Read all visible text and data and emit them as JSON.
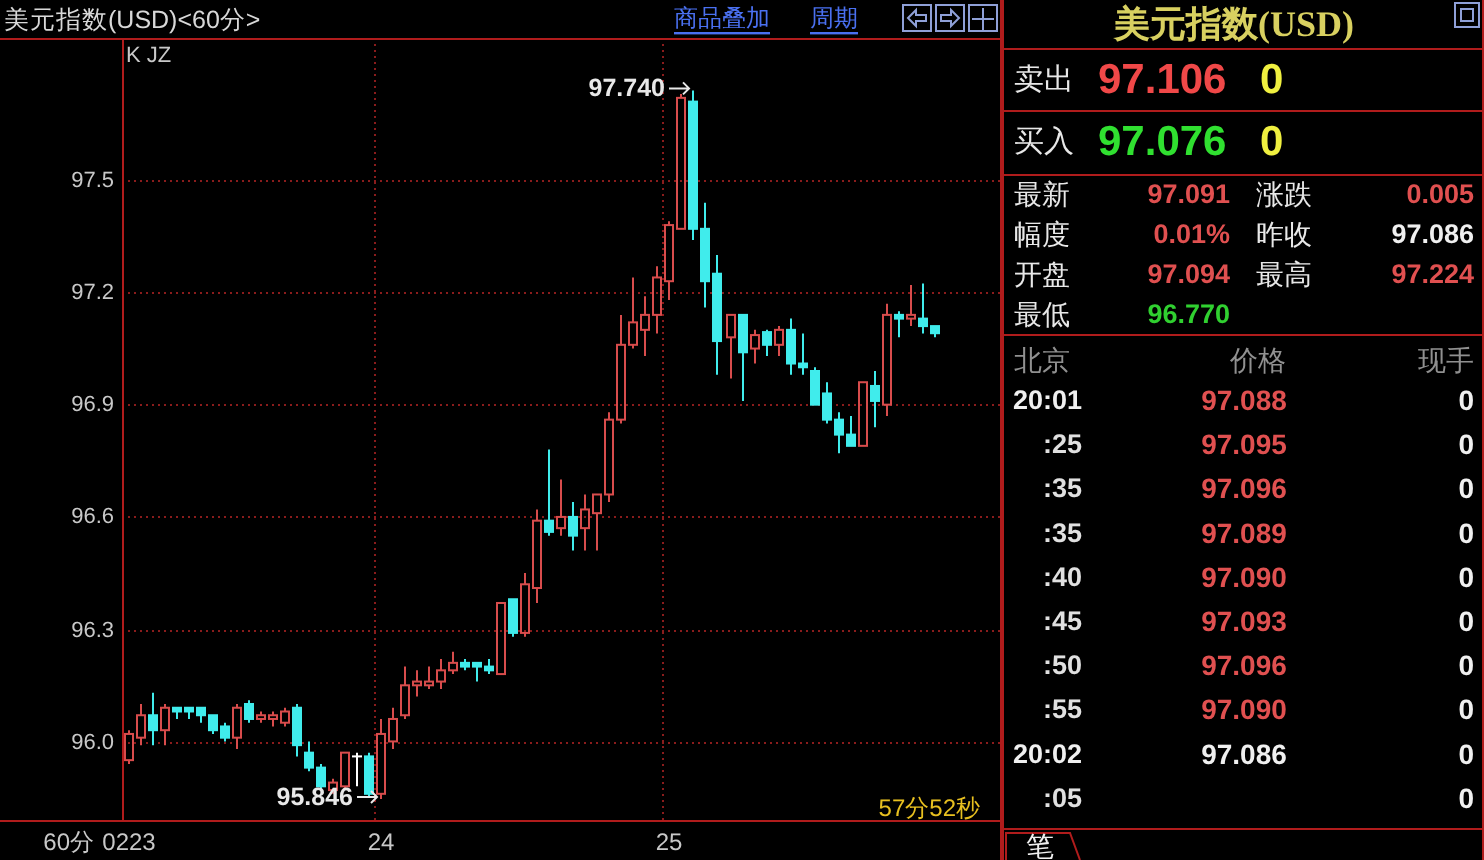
{
  "chart_data": [
    {
      "type": "candlestick",
      "title": "美元指数(USD)<60分>",
      "categories": [
        "0223",
        null,
        null,
        null,
        null,
        null,
        null,
        null,
        null,
        null,
        null,
        null,
        null,
        null,
        null,
        null,
        null,
        null,
        null,
        null,
        null,
        "24",
        null,
        null,
        null,
        null,
        null,
        null,
        null,
        null,
        null,
        null,
        null,
        null,
        null,
        null,
        null,
        null,
        null,
        null,
        null,
        null,
        null,
        null,
        null,
        "25",
        null,
        null,
        null,
        null,
        null,
        null,
        null,
        null,
        null,
        null,
        null,
        null,
        null,
        null,
        null,
        null,
        null,
        null,
        null,
        null,
        null,
        null
      ],
      "ohlc": [
        [
          95.95,
          96.03,
          95.94,
          96.02
        ],
        [
          96.01,
          96.1,
          95.99,
          96.07
        ],
        [
          96.07,
          96.13,
          95.99,
          96.03
        ],
        [
          96.03,
          96.1,
          95.99,
          96.09
        ],
        [
          96.09,
          96.09,
          96.06,
          96.08
        ],
        [
          96.09,
          96.09,
          96.06,
          96.08
        ],
        [
          96.09,
          96.09,
          96.05,
          96.07
        ],
        [
          96.07,
          96.07,
          96.02,
          96.03
        ],
        [
          96.04,
          96.05,
          96.0,
          96.01
        ],
        [
          96.01,
          96.1,
          95.98,
          96.09
        ],
        [
          96.1,
          96.11,
          96.05,
          96.06
        ],
        [
          96.06,
          96.08,
          96.05,
          96.07
        ],
        [
          96.06,
          96.08,
          96.04,
          96.07
        ],
        [
          96.05,
          96.09,
          96.04,
          96.08
        ],
        [
          96.09,
          96.1,
          95.96,
          95.99
        ],
        [
          95.97,
          96.0,
          95.92,
          95.93
        ],
        [
          95.93,
          95.94,
          95.87,
          95.88
        ],
        [
          95.87,
          95.9,
          95.86,
          95.89
        ],
        [
          95.88,
          95.97,
          95.87,
          95.97
        ],
        [
          95.96,
          95.97,
          95.88,
          95.96
        ],
        [
          95.96,
          95.97,
          95.85,
          95.86
        ],
        [
          95.86,
          96.06,
          95.846,
          96.02
        ],
        [
          96.0,
          96.09,
          95.98,
          96.06
        ],
        [
          96.07,
          96.2,
          96.06,
          96.15
        ],
        [
          96.15,
          96.19,
          96.12,
          96.16
        ],
        [
          96.15,
          96.2,
          96.14,
          96.16
        ],
        [
          96.16,
          96.22,
          96.14,
          96.19
        ],
        [
          96.19,
          96.24,
          96.18,
          96.21
        ],
        [
          96.21,
          96.22,
          96.19,
          96.2
        ],
        [
          96.21,
          96.21,
          96.16,
          96.2
        ],
        [
          96.2,
          96.22,
          96.18,
          96.19
        ],
        [
          96.18,
          96.37,
          96.18,
          96.37
        ],
        [
          96.38,
          96.38,
          96.28,
          96.29
        ],
        [
          96.29,
          96.45,
          96.28,
          96.42
        ],
        [
          96.41,
          96.62,
          96.37,
          96.59
        ],
        [
          96.59,
          96.78,
          96.55,
          96.56
        ],
        [
          96.57,
          96.7,
          96.55,
          96.6
        ],
        [
          96.6,
          96.64,
          96.51,
          96.55
        ],
        [
          96.57,
          96.66,
          96.51,
          96.62
        ],
        [
          96.61,
          96.66,
          96.51,
          96.66
        ],
        [
          96.66,
          96.88,
          96.64,
          96.86
        ],
        [
          96.86,
          97.14,
          96.85,
          97.06
        ],
        [
          97.06,
          97.24,
          97.05,
          97.12
        ],
        [
          97.1,
          97.19,
          97.03,
          97.14
        ],
        [
          97.14,
          97.27,
          97.09,
          97.24
        ],
        [
          97.23,
          97.39,
          97.18,
          97.38
        ],
        [
          97.37,
          97.73,
          97.37,
          97.72
        ],
        [
          97.71,
          97.74,
          97.34,
          97.37
        ],
        [
          97.37,
          97.44,
          97.16,
          97.23
        ],
        [
          97.25,
          97.3,
          96.98,
          97.07
        ],
        [
          97.08,
          97.14,
          96.97,
          97.14
        ],
        [
          97.14,
          97.14,
          96.91,
          97.04
        ],
        [
          97.05,
          97.1,
          97.01,
          97.086
        ],
        [
          97.094,
          97.1,
          97.03,
          97.06
        ],
        [
          97.06,
          97.11,
          97.03,
          97.1
        ],
        [
          97.1,
          97.13,
          96.98,
          97.01
        ],
        [
          97.01,
          97.09,
          96.98,
          97.0
        ],
        [
          96.99,
          97.0,
          96.9,
          96.9
        ],
        [
          96.93,
          96.96,
          96.85,
          96.86
        ],
        [
          96.86,
          96.88,
          96.77,
          96.82
        ],
        [
          96.82,
          96.87,
          96.79,
          96.79
        ],
        [
          96.79,
          96.96,
          96.79,
          96.96
        ],
        [
          96.95,
          96.99,
          96.84,
          96.91
        ],
        [
          96.9,
          97.17,
          96.87,
          97.14
        ],
        [
          97.14,
          97.15,
          97.08,
          97.13
        ],
        [
          97.13,
          97.22,
          97.11,
          97.14
        ],
        [
          97.13,
          97.224,
          97.09,
          97.11
        ],
        [
          97.11,
          97.11,
          97.08,
          97.091
        ]
      ],
      "colors": [
        "#d84c4c",
        "#d84c4c",
        "#40ecec",
        "#d84c4c",
        "#40ecec",
        "#40ecec",
        "#40ecec",
        "#40ecec",
        "#40ecec",
        "#d84c4c",
        "#40ecec",
        "#d84c4c",
        "#d84c4c",
        "#d84c4c",
        "#40ecec",
        "#40ecec",
        "#40ecec",
        "#d84c4c",
        "#d84c4c",
        "#ffffff",
        "#40ecec",
        "#d84c4c",
        "#d84c4c",
        "#d84c4c",
        "#d84c4c",
        "#d84c4c",
        "#d84c4c",
        "#d84c4c",
        "#40ecec",
        "#40ecec",
        "#40ecec",
        "#d84c4c",
        "#40ecec",
        "#d84c4c",
        "#d84c4c",
        "#40ecec",
        "#d84c4c",
        "#40ecec",
        "#d84c4c",
        "#d84c4c",
        "#d84c4c",
        "#d84c4c",
        "#d84c4c",
        "#d84c4c",
        "#d84c4c",
        "#d84c4c",
        "#d84c4c",
        "#40ecec",
        "#40ecec",
        "#40ecec",
        "#d84c4c",
        "#40ecec",
        "#d84c4c",
        "#40ecec",
        "#d84c4c",
        "#40ecec",
        "#40ecec",
        "#40ecec",
        "#40ecec",
        "#40ecec",
        "#40ecec",
        "#d84c4c",
        "#40ecec",
        "#d84c4c",
        "#40ecec",
        "#d84c4c",
        "#40ecec",
        "#40ecec"
      ],
      "ylim": [
        95.79,
        97.88
      ],
      "yticks": [
        {
          "value": 96,
          "label": "96.0"
        },
        96.3,
        96.6,
        96.9,
        97.2,
        97.5
      ],
      "grid": true,
      "annotations": [
        "97.740",
        "95.846",
        "K JZ",
        "60分",
        "57分52秒",
        "商品叠加",
        "周期"
      ]
    },
    {
      "type": "other",
      "title": "美元指数(USD)",
      "annotations": [
        "卖出",
        "97.106",
        "0",
        "买入",
        "97.076",
        "0",
        "最新",
        "97.091",
        "涨跌",
        "0.005",
        "幅度",
        "0.01%",
        "昨收",
        "97.086",
        "开盘",
        "97.094",
        "最高",
        "97.224",
        "最低",
        "96.770",
        "北京",
        "价格",
        "现手",
        "20:01",
        "97.088",
        "0",
        ":25",
        "97.095",
        "0",
        ":35",
        "97.096",
        "0",
        ":35",
        "97.089",
        "0",
        ":40",
        "97.090",
        "0",
        ":45",
        "97.093",
        "0",
        ":50",
        "97.096",
        "0",
        ":55",
        "97.090",
        "0",
        "20:02",
        "97.086",
        "0",
        ":05",
        "0",
        "笔"
      ],
      "colors": [
        "#e8e8e8",
        "#f04848",
        "#f0f040",
        "#e8e8e8",
        "#30e030",
        "#f0f040",
        "#e8e8e8",
        "#e05050",
        "#e8e8e8",
        "#e05050",
        "#e8e8e8",
        "#e05050",
        "#e8e8e8",
        "#f0f0f0",
        "#e8e8e8",
        "#e05050",
        "#e8e8e8",
        "#e05050",
        "#e8e8e8",
        "#30d030",
        "#909090",
        "#909090",
        "#909090",
        "#f0f0f0",
        "#e05050",
        "#f0f0f0",
        "#e0e0e0",
        "#e05050",
        "#f0f0f0",
        "#e0e0e0",
        "#e05050",
        "#f0f0f0",
        "#e0e0e0",
        "#e05050",
        "#f0f0f0",
        "#e0e0e0",
        "#e05050",
        "#f0f0f0",
        "#e0e0e0",
        "#e05050",
        "#f0f0f0",
        "#e0e0e0",
        "#e05050",
        "#f0f0f0",
        "#e0e0e0",
        "#e05050",
        "#f0f0f0",
        "#f0f0f0",
        "#f0f0f0",
        "#f0f0f0",
        "#e0e0e0",
        "#f0f0f0",
        "#f0f0f0"
      ]
    }
  ]
}
